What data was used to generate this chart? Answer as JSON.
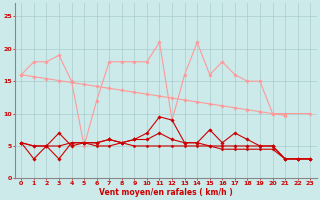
{
  "x": [
    0,
    1,
    2,
    3,
    4,
    5,
    6,
    7,
    8,
    9,
    10,
    11,
    12,
    13,
    14,
    15,
    16,
    17,
    18,
    19,
    20,
    21,
    22,
    23
  ],
  "rafales": [
    16,
    18,
    18,
    19,
    15,
    5,
    12,
    18,
    18,
    18,
    18,
    21,
    9,
    16,
    21,
    16,
    18,
    16,
    15,
    15,
    10,
    10,
    null,
    10
  ],
  "diag": [
    16,
    15.7,
    15.4,
    15.1,
    14.8,
    14.5,
    14.2,
    13.9,
    13.6,
    13.3,
    13.0,
    12.7,
    12.4,
    12.1,
    11.8,
    11.5,
    11.2,
    10.9,
    10.6,
    10.3,
    10.0,
    9.7,
    null,
    null
  ],
  "moyen1": [
    5.5,
    3,
    5,
    7,
    5,
    5.5,
    5.5,
    6,
    5.5,
    6,
    7,
    9.5,
    9,
    5.5,
    5.5,
    7.5,
    5.5,
    7,
    6,
    5,
    5,
    3,
    3,
    3
  ],
  "moyen2": [
    5.5,
    5,
    5,
    3,
    5.5,
    5.5,
    5.5,
    6,
    5.5,
    6,
    6,
    7,
    6,
    5.5,
    5.5,
    5,
    5,
    5,
    5,
    5,
    5,
    3,
    3,
    3
  ],
  "moyen3": [
    5.5,
    5,
    5,
    5,
    5.5,
    5.5,
    5,
    5,
    5.5,
    5,
    5,
    5,
    5,
    5,
    5,
    5,
    4.5,
    4.5,
    4.5,
    4.5,
    4.5,
    3,
    3,
    3
  ],
  "bg_color": "#cceaea",
  "grid_color": "#aacccc",
  "dark_red": "#cc0000",
  "light_pink": "#ff9999",
  "xlabel": "Vent moyen/en rafales ( km/h )",
  "ylim": [
    0,
    27
  ],
  "yticks": [
    0,
    5,
    10,
    15,
    20,
    25
  ],
  "xticks": [
    0,
    1,
    2,
    3,
    4,
    5,
    6,
    7,
    8,
    9,
    10,
    11,
    12,
    13,
    14,
    15,
    16,
    17,
    18,
    19,
    20,
    21,
    22,
    23
  ]
}
